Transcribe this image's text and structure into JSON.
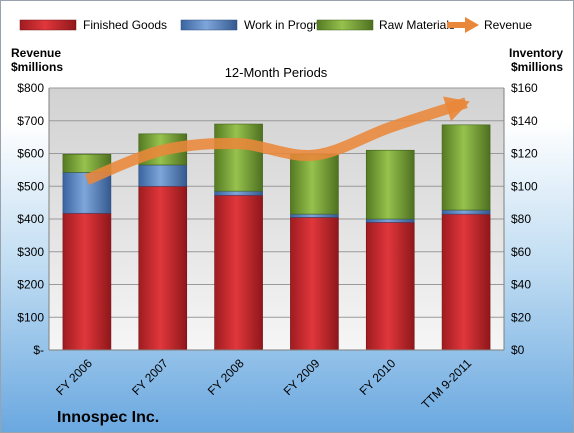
{
  "chart_data": {
    "type": "bar",
    "subtitle": "12-Month Periods",
    "company": "Innospec Inc.",
    "categories": [
      "FY 2006",
      "FY 2007",
      "FY 2008",
      "FY 2009",
      "FY 2010",
      "TTM 9-2011"
    ],
    "left_axis": {
      "title_line1": "Revenue",
      "title_line2": "$millions",
      "ylim": [
        0,
        800
      ],
      "ticks": [
        "$-",
        "$100",
        "$200",
        "$300",
        "$400",
        "$500",
        "$600",
        "$700",
        "$800"
      ]
    },
    "right_axis": {
      "title_line1": "Inventory",
      "title_line2": "$millions",
      "ylim": [
        0,
        160
      ],
      "ticks": [
        "$0",
        "$20",
        "$40",
        "$60",
        "$80",
        "$100",
        "$120",
        "$140",
        "$160"
      ]
    },
    "series": [
      {
        "name": "Finished Goods",
        "axis": "right",
        "type": "bar",
        "color": "#c8262b",
        "values": [
          83.5,
          100.0,
          94.5,
          81.0,
          78.0,
          83.0
        ]
      },
      {
        "name": "Work in Progress",
        "axis": "right",
        "type": "bar",
        "color": "#4f81bd",
        "values": [
          25.0,
          13.0,
          2.5,
          2.0,
          2.0,
          2.5
        ]
      },
      {
        "name": "Raw Materials",
        "axis": "right",
        "type": "bar",
        "color": "#77a033",
        "values": [
          11.0,
          19.0,
          41.0,
          36.5,
          42.0,
          52.0
        ]
      },
      {
        "name": "Revenue",
        "axis": "left",
        "type": "line",
        "color": "#e9883a",
        "values": [
          520,
          610,
          630,
          595,
          680,
          755
        ]
      }
    ],
    "grid": true,
    "legend": "top"
  }
}
